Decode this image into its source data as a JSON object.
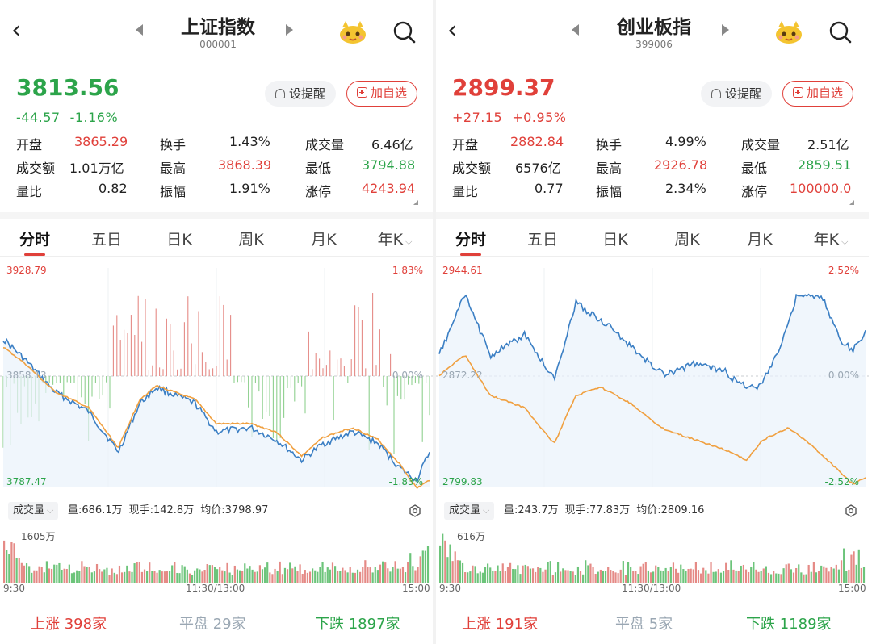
{
  "colors": {
    "up": "#e0403a",
    "down": "#2ca44a",
    "flat": "#9aa7b3",
    "line_index": "#3b7fc4",
    "line_avg": "#f0a040"
  },
  "panels": [
    {
      "title": "上证指数",
      "code": "000001",
      "price": "3813.56",
      "change": "-44.57",
      "change_pct": "-1.16%",
      "trend": "down",
      "alert_label": "设提醒",
      "add_label": "加自选",
      "stats": [
        [
          {
            "label": "开盘",
            "value": "3865.29",
            "color": "up"
          },
          {
            "label": "换手",
            "value": "1.43%",
            "color": "flat"
          },
          {
            "label": "成交量",
            "value": "6.46亿",
            "color": "flat"
          }
        ],
        [
          {
            "label": "成交额",
            "value": "1.01万亿",
            "color": "flat"
          },
          {
            "label": "最高",
            "value": "3868.39",
            "color": "up"
          },
          {
            "label": "最低",
            "value": "3794.88",
            "color": "down"
          }
        ],
        [
          {
            "label": "量比",
            "value": "0.82",
            "color": "flat"
          },
          {
            "label": "振幅",
            "value": "1.91%",
            "color": "flat"
          },
          {
            "label": "涨停",
            "value": "4243.94",
            "color": "up"
          }
        ]
      ],
      "tabs": [
        "分时",
        "五日",
        "日K",
        "周K",
        "月K",
        "年K"
      ],
      "chart": {
        "max": "3928.79",
        "min": "3787.47",
        "max_pct": "1.83%",
        "min_pct": "-1.83%",
        "zero_pct": "0.00%",
        "mid": "3858.13"
      },
      "volume": {
        "selector": "成交量",
        "qty": "量:686.1万",
        "now": "现手:142.8万",
        "avg": "均价:3798.97",
        "max": "1605万"
      },
      "times": [
        "9:30",
        "11:30/13:00",
        "15:00"
      ],
      "breadth": {
        "up_label": "上涨",
        "up_count": "398家",
        "flat_label": "平盘",
        "flat_count": "29家",
        "down_label": "下跌",
        "down_count": "1897家"
      }
    },
    {
      "title": "创业板指",
      "code": "399006",
      "price": "2899.37",
      "change": "+27.15",
      "change_pct": "+0.95%",
      "trend": "up",
      "alert_label": "设提醒",
      "add_label": "加自选",
      "stats": [
        [
          {
            "label": "开盘",
            "value": "2882.84",
            "color": "up"
          },
          {
            "label": "换手",
            "value": "4.99%",
            "color": "flat"
          },
          {
            "label": "成交量",
            "value": "2.51亿",
            "color": "flat"
          }
        ],
        [
          {
            "label": "成交额",
            "value": "6576亿",
            "color": "flat"
          },
          {
            "label": "最高",
            "value": "2926.78",
            "color": "up"
          },
          {
            "label": "最低",
            "value": "2859.51",
            "color": "down"
          }
        ],
        [
          {
            "label": "量比",
            "value": "0.77",
            "color": "flat"
          },
          {
            "label": "振幅",
            "value": "2.34%",
            "color": "flat"
          },
          {
            "label": "涨停",
            "value": "100000.0",
            "color": "up"
          }
        ]
      ],
      "tabs": [
        "分时",
        "五日",
        "日K",
        "周K",
        "月K",
        "年K"
      ],
      "chart": {
        "max": "2944.61",
        "min": "2799.83",
        "max_pct": "2.52%",
        "min_pct": "-2.52%",
        "zero_pct": "0.00%",
        "mid": "2872.22"
      },
      "volume": {
        "selector": "成交量",
        "qty": "量:243.7万",
        "now": "现手:77.83万",
        "avg": "均价:2809.16",
        "max": "616万"
      },
      "times": [
        "9:30",
        "11:30/13:00",
        "15:00"
      ],
      "breadth": {
        "up_label": "上涨",
        "up_count": "191家",
        "flat_label": "平盘",
        "flat_count": "5家",
        "down_label": "下跌",
        "down_count": "1189家"
      }
    }
  ]
}
